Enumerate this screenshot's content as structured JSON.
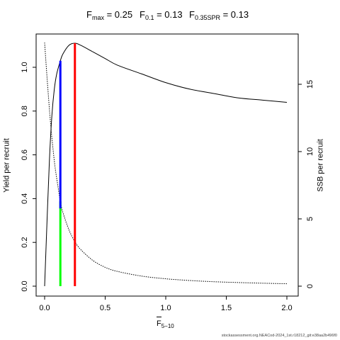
{
  "title": {
    "fmax_label": "F",
    "fmax_sub": "max",
    "fmax_value": " = 0.25",
    "f01_label": "F",
    "f01_sub": "0.1",
    "f01_value": " = 0.13",
    "fspr_label": "F",
    "fspr_sub": "0.35SPR",
    "fspr_value": " = 0.13"
  },
  "footer": "stockassessment.org.NEACod-2024_1st.r18212_git:e38aa2b496f0",
  "chart_data": {
    "type": "line",
    "xlabel": "F",
    "xlabel_sub": "5−10",
    "ylabel_left": "Yield per recruit",
    "ylabel_right": "SSB per recruit",
    "xlim": [
      0,
      2.0
    ],
    "ylim_left": [
      0,
      1.1
    ],
    "ylim_right": [
      0,
      18
    ],
    "x_ticks": [
      "0.0",
      "0.5",
      "1.0",
      "1.5",
      "2.0"
    ],
    "y_left_ticks": [
      "0.0",
      "0.2",
      "0.4",
      "0.6",
      "0.8",
      "1.0"
    ],
    "y_right_ticks": [
      "0",
      "5",
      "10",
      "15"
    ],
    "grid": false,
    "series": [
      {
        "axis": "left",
        "style": "solid",
        "x": [
          0,
          0.02,
          0.04,
          0.06,
          0.08,
          0.1,
          0.13,
          0.15,
          0.2,
          0.25,
          0.3,
          0.4,
          0.5,
          0.6,
          0.8,
          1.0,
          1.2,
          1.4,
          1.6,
          1.8,
          2.0
        ],
        "y": [
          0.0,
          0.3,
          0.58,
          0.78,
          0.9,
          0.97,
          1.03,
          1.06,
          1.1,
          1.11,
          1.1,
          1.07,
          1.04,
          1.01,
          0.97,
          0.93,
          0.9,
          0.88,
          0.86,
          0.85,
          0.84
        ]
      },
      {
        "axis": "right",
        "style": "dotted",
        "x": [
          0,
          0.02,
          0.05,
          0.08,
          0.1,
          0.13,
          0.15,
          0.2,
          0.25,
          0.3,
          0.4,
          0.5,
          0.6,
          0.8,
          1.0,
          1.2,
          1.4,
          1.6,
          1.8,
          2.0
        ],
        "y": [
          18.1,
          15.5,
          12.0,
          9.3,
          8.0,
          6.3,
          5.5,
          4.2,
          3.3,
          2.7,
          1.9,
          1.4,
          1.1,
          0.75,
          0.55,
          0.42,
          0.33,
          0.27,
          0.22,
          0.18
        ]
      }
    ],
    "reference_lines": [
      {
        "x": 0.25,
        "color": "#ff0000",
        "y_from": 0,
        "y_to": 1.11,
        "axis": "left"
      },
      {
        "x": 0.13,
        "color": "#00ff00",
        "y_from": 0,
        "y_to": 6.3,
        "axis": "right"
      },
      {
        "x": 0.13,
        "color": "#0000ff",
        "y_from": 0.355,
        "y_to": 1.03,
        "axis": "left"
      }
    ]
  }
}
